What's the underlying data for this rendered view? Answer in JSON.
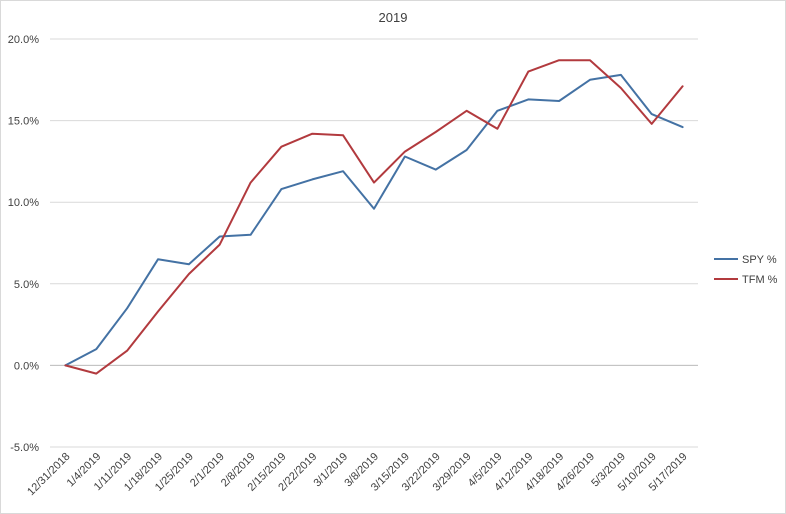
{
  "chart_data": {
    "type": "line",
    "title": "2019",
    "xlabel": "",
    "ylabel": "",
    "categories": [
      "12/31/2018",
      "1/4/2019",
      "1/11/2019",
      "1/18/2019",
      "1/25/2019",
      "2/1/2019",
      "2/8/2019",
      "2/15/2019",
      "2/22/2019",
      "3/1/2019",
      "3/8/2019",
      "3/15/2019",
      "3/22/2019",
      "3/29/2019",
      "4/5/2019",
      "4/12/2019",
      "4/18/2019",
      "4/26/2019",
      "5/3/2019",
      "5/10/2019",
      "5/17/2019"
    ],
    "series": [
      {
        "name": "SPY %",
        "color": "#4472a4",
        "values": [
          0.0,
          1.0,
          3.5,
          6.5,
          6.2,
          7.9,
          8.0,
          10.8,
          11.4,
          11.9,
          9.6,
          12.8,
          12.0,
          13.2,
          15.6,
          16.3,
          16.2,
          17.5,
          17.8,
          15.4,
          14.6
        ]
      },
      {
        "name": "TFM %",
        "color": "#b23a3e",
        "values": [
          0.0,
          -0.5,
          0.9,
          3.3,
          5.6,
          7.4,
          11.2,
          13.4,
          14.2,
          14.1,
          11.2,
          13.1,
          14.3,
          15.6,
          14.5,
          18.0,
          18.7,
          18.7,
          17.0,
          14.8,
          17.1
        ]
      }
    ],
    "ylim": [
      -5,
      20
    ],
    "yticks": [
      -5,
      0,
      5,
      10,
      15,
      20
    ],
    "ytick_labels": [
      "-5.0%",
      "0.0%",
      "5.0%",
      "10.0%",
      "15.0%",
      "20.0%"
    ],
    "grid": "horizontal",
    "legend_position": "right"
  }
}
